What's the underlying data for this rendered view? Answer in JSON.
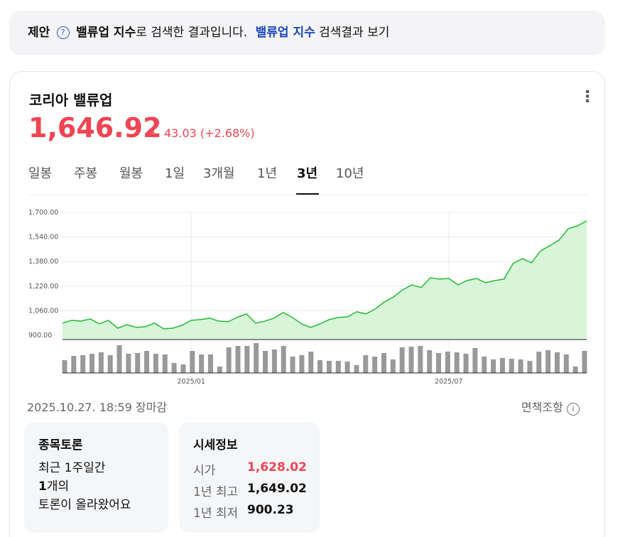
{
  "suggestion": {
    "label": "제안",
    "term": "밸류업 지수",
    "text": "로 검색한 결과입니다.",
    "link": "밸류업 지수",
    "link_suffix": "검색결과 보기"
  },
  "stock": {
    "name": "코리아 밸류업",
    "price": "1,646.92",
    "change": "43.03",
    "change_pct": "(+2.68%)"
  },
  "tabs": [
    {
      "label": "일봉"
    },
    {
      "label": "주봉"
    },
    {
      "label": "월봉"
    },
    {
      "label": "1일"
    },
    {
      "label": "3개월"
    },
    {
      "label": "1년"
    },
    {
      "label": "3년",
      "selected": true
    },
    {
      "label": "10년"
    }
  ],
  "chart_data": {
    "type": "area",
    "color": "#22bb33",
    "fill": "#d8f5d9",
    "ylim": [
      872,
      1700
    ],
    "yticks": [
      {
        "value": 900,
        "label": "900.00"
      },
      {
        "value": 1060,
        "label": "1,060.00"
      },
      {
        "value": 1220,
        "label": "1,220.00"
      },
      {
        "value": 1380,
        "label": "1,380.00"
      },
      {
        "value": 1540,
        "label": "1,540.00"
      },
      {
        "value": 1700,
        "label": "1,700.00"
      }
    ],
    "grid": true,
    "categories": [
      null,
      null,
      null,
      null,
      null,
      null,
      null,
      null,
      null,
      null,
      null,
      null,
      null,
      null,
      "2025/01",
      null,
      null,
      null,
      null,
      null,
      null,
      null,
      null,
      null,
      null,
      null,
      null,
      null,
      null,
      null,
      null,
      null,
      null,
      null,
      null,
      null,
      null,
      null,
      null,
      null,
      null,
      null,
      "2025/07",
      null,
      null,
      null,
      null,
      null,
      null,
      null,
      null,
      null,
      null,
      null,
      null,
      null,
      null,
      null
    ],
    "values": [
      979,
      997,
      992,
      1006,
      974,
      997,
      946,
      969,
      951,
      955,
      979,
      942,
      946,
      965,
      997,
      1002,
      1011,
      992,
      988,
      1016,
      1039,
      979,
      992,
      1011,
      1048,
      1016,
      974,
      951,
      974,
      1002,
      1016,
      1020,
      1053,
      1039,
      1071,
      1117,
      1150,
      1196,
      1228,
      1210,
      1275,
      1265,
      1270,
      1228,
      1256,
      1270,
      1242,
      1256,
      1265,
      1367,
      1399,
      1372,
      1450,
      1483,
      1520,
      1594,
      1612,
      1645
    ],
    "volume": {
      "color": "#999999",
      "values": [
        18,
        24,
        25,
        27,
        29,
        25,
        39,
        27,
        28,
        31,
        27,
        26,
        14,
        12,
        31,
        26,
        26,
        9,
        36,
        38,
        38,
        42,
        31,
        33,
        38,
        23,
        25,
        30,
        18,
        17,
        17,
        16,
        11,
        25,
        23,
        28,
        19,
        36,
        37,
        38,
        32,
        28,
        30,
        29,
        27,
        35,
        23,
        19,
        21,
        20,
        19,
        17,
        30,
        32,
        29,
        26,
        9,
        31
      ]
    },
    "y2lim": [
      0,
      45
    ]
  },
  "status": {
    "time": "2025.10.27. 18:59 장마감",
    "disclaimer": "면책조항"
  },
  "discussion": {
    "title": "종목토론",
    "line1": "최근 1주일간",
    "count": "1",
    "count_suffix": "개의",
    "line3": "토론이 올라왔어요"
  },
  "quote": {
    "title": "시세정보",
    "rows": [
      {
        "label": "시가",
        "value": "1,628.02",
        "up": true
      },
      {
        "label": "1년 최고",
        "value": "1,649.02"
      },
      {
        "label": "1년 최저",
        "value": "900.23"
      }
    ]
  }
}
